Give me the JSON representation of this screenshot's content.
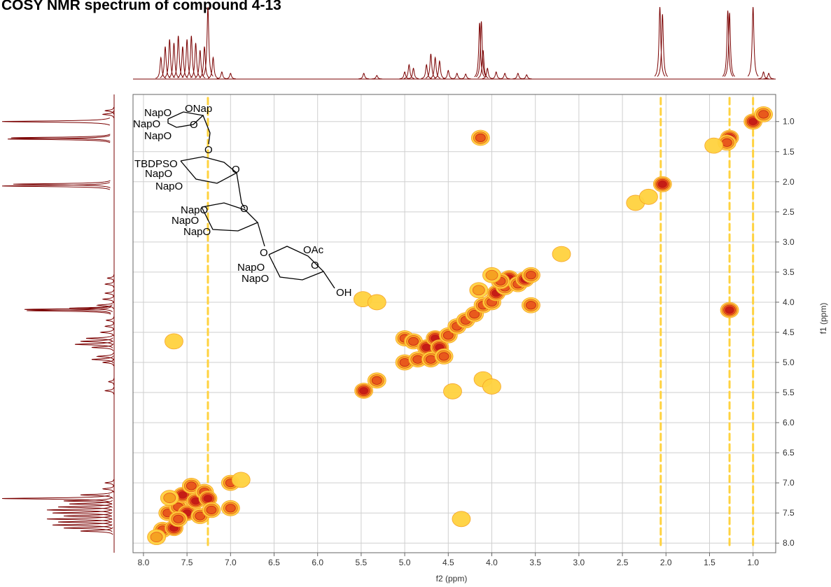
{
  "chart_data": {
    "type": "contour",
    "title": "COSY NMR spectrum of compound 4-13",
    "x_label": "f2 (ppm)",
    "y_label": "f1 (ppm)",
    "xlim": [
      8.12,
      0.74
    ],
    "ylim": [
      0.55,
      8.16
    ],
    "xticks": [
      {
        "value": 8,
        "label": "8.0"
      },
      7.5,
      {
        "value": 7,
        "label": "7.0"
      },
      6.5,
      {
        "value": 6,
        "label": "6.0"
      },
      5.5,
      {
        "value": 5,
        "label": "5.0"
      },
      4.5,
      {
        "value": 4,
        "label": "4.0"
      },
      3.5,
      {
        "value": 3,
        "label": "3.0"
      },
      2.5,
      {
        "value": 2,
        "label": "2.0"
      },
      1.5,
      {
        "value": 1,
        "label": "1.0"
      }
    ],
    "yticks": [
      {
        "value": 1,
        "label": "1.0"
      },
      1.5,
      {
        "value": 2,
        "label": "2.0"
      },
      2.5,
      {
        "value": 3,
        "label": "3.0"
      },
      3.5,
      {
        "value": 4,
        "label": "4.0"
      },
      4.5,
      {
        "value": 5,
        "label": "5.0"
      },
      5.5,
      {
        "value": 6,
        "label": "6.0"
      },
      6.5,
      {
        "value": 7,
        "label": "7.0"
      },
      7.5,
      {
        "value": 8,
        "label": "8.0"
      }
    ],
    "grid": true,
    "contour_colors": [
      "#ffd23f",
      "#f5a020",
      "#e8561c",
      "#c41a16"
    ],
    "projection_color": "#7a0000",
    "cross_peaks": [
      [
        7.78,
        7.78,
        3
      ],
      [
        7.72,
        7.5,
        3
      ],
      [
        7.65,
        7.75,
        4
      ],
      [
        7.6,
        7.4,
        3
      ],
      [
        7.55,
        7.2,
        4
      ],
      [
        7.5,
        7.5,
        4
      ],
      [
        7.45,
        7.05,
        3
      ],
      [
        7.4,
        7.3,
        4
      ],
      [
        7.35,
        7.55,
        3
      ],
      [
        7.3,
        7.15,
        3
      ],
      [
        7.26,
        7.26,
        4
      ],
      [
        7.22,
        7.45,
        3
      ],
      [
        7.6,
        7.6,
        3
      ],
      [
        7.0,
        7.0,
        3
      ],
      [
        7.0,
        7.42,
        3
      ],
      [
        7.7,
        7.25,
        2
      ],
      [
        7.85,
        7.9,
        2
      ],
      [
        5.47,
        5.47,
        4
      ],
      [
        5.32,
        5.3,
        3
      ],
      [
        5.48,
        3.95,
        1
      ],
      [
        5.32,
        4.0,
        1
      ],
      [
        5.0,
        5.0,
        3
      ],
      [
        5.0,
        4.6,
        3
      ],
      [
        4.9,
        4.65,
        3
      ],
      [
        4.85,
        4.95,
        3
      ],
      [
        4.75,
        4.75,
        4
      ],
      [
        4.7,
        4.95,
        3
      ],
      [
        4.65,
        4.6,
        4
      ],
      [
        4.6,
        4.75,
        4
      ],
      [
        4.55,
        4.9,
        3
      ],
      [
        4.5,
        4.55,
        3
      ],
      [
        4.4,
        4.4,
        3
      ],
      [
        4.3,
        4.3,
        3
      ],
      [
        4.2,
        4.2,
        3
      ],
      [
        4.1,
        4.05,
        3
      ],
      [
        4.0,
        4.0,
        3
      ],
      [
        3.95,
        3.85,
        4
      ],
      [
        3.85,
        3.75,
        3
      ],
      [
        3.8,
        3.6,
        4
      ],
      [
        3.7,
        3.7,
        3
      ],
      [
        3.62,
        3.62,
        4
      ],
      [
        3.55,
        3.55,
        3
      ],
      [
        3.55,
        4.05,
        3
      ],
      [
        3.9,
        3.65,
        3
      ],
      [
        4.15,
        3.8,
        2
      ],
      [
        4.0,
        3.55,
        2
      ],
      [
        4.13,
        1.27,
        3
      ],
      [
        1.27,
        4.13,
        4
      ],
      [
        2.04,
        2.04,
        4
      ],
      [
        1.27,
        1.27,
        4
      ],
      [
        1.3,
        1.35,
        3
      ],
      [
        1.0,
        1.0,
        4
      ],
      [
        0.88,
        0.88,
        3
      ],
      [
        1.45,
        1.4,
        1
      ],
      [
        2.35,
        2.35,
        1
      ],
      [
        2.2,
        2.25,
        1
      ],
      [
        3.2,
        3.2,
        1
      ],
      [
        4.1,
        5.28,
        1
      ],
      [
        4.0,
        5.4,
        1
      ],
      [
        4.45,
        5.48,
        1
      ],
      [
        4.35,
        7.6,
        1
      ],
      [
        7.65,
        4.65,
        1
      ],
      [
        6.88,
        6.95,
        1
      ]
    ],
    "t1_noise_columns": [
      7.26,
      2.06,
      1.27,
      1.0
    ],
    "projection": [
      [
        7.8,
        0.3
      ],
      [
        7.75,
        0.45
      ],
      [
        7.7,
        0.55
      ],
      [
        7.65,
        0.5
      ],
      [
        7.6,
        0.6
      ],
      [
        7.55,
        0.45
      ],
      [
        7.5,
        0.55
      ],
      [
        7.45,
        0.6
      ],
      [
        7.4,
        0.5
      ],
      [
        7.35,
        0.4
      ],
      [
        7.3,
        0.45
      ],
      [
        7.26,
        1.0
      ],
      [
        7.2,
        0.3
      ],
      [
        7.1,
        0.1
      ],
      [
        7.0,
        0.08
      ],
      [
        5.47,
        0.08
      ],
      [
        5.32,
        0.05
      ],
      [
        5.0,
        0.1
      ],
      [
        4.95,
        0.2
      ],
      [
        4.9,
        0.15
      ],
      [
        4.75,
        0.2
      ],
      [
        4.7,
        0.35
      ],
      [
        4.65,
        0.3
      ],
      [
        4.6,
        0.25
      ],
      [
        4.5,
        0.12
      ],
      [
        4.4,
        0.08
      ],
      [
        4.3,
        0.07
      ],
      [
        4.14,
        0.78
      ],
      [
        4.12,
        0.8
      ],
      [
        4.1,
        0.4
      ],
      [
        4.05,
        0.15
      ],
      [
        3.95,
        0.1
      ],
      [
        3.85,
        0.08
      ],
      [
        3.7,
        0.08
      ],
      [
        3.6,
        0.06
      ],
      [
        2.07,
        1.0
      ],
      [
        2.04,
        0.9
      ],
      [
        1.29,
        0.95
      ],
      [
        1.27,
        0.92
      ],
      [
        1.0,
        1.0
      ],
      [
        0.88,
        0.1
      ],
      [
        0.82,
        0.08
      ]
    ],
    "structure_labels": [
      "NapO",
      "ONap",
      "NapO",
      "O",
      "NapO",
      "O",
      "TBDPSO",
      "O",
      "NapO",
      "NapO",
      "O",
      "NapO",
      "NapO",
      "NapO",
      "O",
      "OAc",
      "O",
      "NapO",
      "NapO",
      "OH"
    ]
  }
}
